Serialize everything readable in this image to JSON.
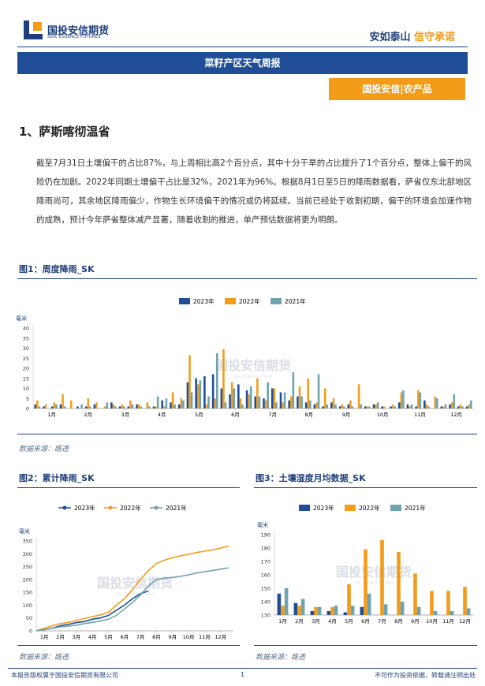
{
  "header": {
    "logo_cn": "国投安信期货",
    "logo_en": "SDIC ESSENCE FUTURES",
    "slogan_a": "安如泰山",
    "slogan_b": "信守承诺"
  },
  "report_title": "菜籽产区天气周报",
  "tag": "国投安信|农产品",
  "section": "1、萨斯喀彻温省",
  "paragraph": "截至7月31日土壤偏干的占比87%，与上周相比高2个百分点，其中十分干旱的占比提升了1个百分点，整体上偏干的风险仍在加剧。2022年同期土壤偏干占比是32%，2021年为96%。根据8月1日至5日的降雨数据看，萨省仅东北部地区降雨尚可，其余地区降雨偏少，作物生长环境偏干的情况或仍将延续。当前已经处于收割初期，偏干的环境会加速作物的成熟，预计今年萨省整体减产显著，随着收割的推进，单产预估数据将更为明朗。",
  "watermark": {
    "cn": "国投安信期货",
    "en": "SDIC ESSENCE FUTURES"
  },
  "footer": {
    "left": "本报告版权属于国投安信期货有限公司",
    "page": "1",
    "right": "不可作为投资依据，转载请注明出处"
  },
  "chart_data": [
    {
      "type": "bar",
      "title": "图1：周度降雨_SK",
      "source": "数据来源：路透",
      "y_label": "毫米",
      "grid": false,
      "x": [
        1,
        2,
        3,
        4,
        5,
        6,
        7,
        8,
        9,
        10,
        11,
        12,
        13,
        14,
        15,
        16,
        17,
        18,
        19,
        20,
        21,
        22,
        23,
        24,
        25,
        26,
        27,
        28,
        29,
        30,
        31,
        32,
        33,
        34,
        35,
        36,
        37,
        38,
        39,
        40,
        41,
        42,
        43,
        44,
        45,
        46,
        47,
        48,
        49,
        50,
        51,
        52
      ],
      "xlim": [
        0.5,
        52.5
      ],
      "xticks": [
        {
          "value": 2.7,
          "label": "1月"
        },
        {
          "value": 7,
          "label": "2月"
        },
        {
          "value": 11.4,
          "label": "3月"
        },
        {
          "value": 15.7,
          "label": "4月"
        },
        {
          "value": 20.1,
          "label": "5月"
        },
        {
          "value": 24.4,
          "label": "6月"
        },
        {
          "value": 28.8,
          "label": "7月"
        },
        {
          "value": 33.1,
          "label": "8月"
        },
        {
          "value": 37.5,
          "label": "9月"
        },
        {
          "value": 41.8,
          "label": "10月"
        },
        {
          "value": 46.2,
          "label": "11月"
        },
        {
          "value": 50.5,
          "label": "12月"
        }
      ],
      "ylim": [
        0,
        40
      ],
      "yticks": [
        0,
        5,
        10,
        15,
        20,
        25,
        30,
        35,
        40
      ],
      "series": [
        {
          "name": "2023年",
          "color": "#1f4e96",
          "values": [
            2,
            1,
            1,
            2,
            0,
            1,
            1,
            2,
            0,
            3,
            1,
            1,
            2,
            0,
            1,
            4,
            3,
            2,
            13,
            15,
            16,
            17,
            10,
            7,
            12,
            9,
            6,
            5,
            10,
            8,
            4,
            6,
            3,
            2,
            1,
            3,
            1,
            2,
            0,
            1,
            2,
            1,
            1,
            3,
            2,
            1,
            4,
            0,
            1,
            2,
            1,
            1
          ]
        },
        {
          "name": "2022年",
          "color": "#f39c1a",
          "values": [
            4,
            2,
            3,
            7,
            4,
            0,
            5,
            3,
            1,
            2,
            2,
            4,
            2,
            3,
            1,
            1,
            8,
            5,
            26.5,
            12,
            2,
            5,
            29.5,
            13,
            5,
            7,
            15,
            4,
            10,
            3,
            6,
            11,
            15,
            3,
            10,
            5,
            2,
            4,
            12,
            1,
            2,
            1,
            2,
            8,
            1,
            9,
            2,
            6,
            1,
            3,
            2,
            2
          ]
        },
        {
          "name": "2021年",
          "color": "#6fa3ae",
          "values": [
            1,
            0,
            2,
            1,
            0,
            2,
            1,
            0,
            3,
            1,
            1,
            2,
            1,
            1,
            6,
            5,
            2,
            4,
            8,
            14,
            6,
            27.5,
            3,
            10,
            2,
            11,
            6,
            13,
            3,
            8,
            18,
            6,
            4,
            17,
            2,
            2,
            1,
            1,
            2,
            1,
            3,
            0,
            1,
            9,
            2,
            8,
            1,
            5,
            2,
            7,
            1,
            4
          ]
        }
      ]
    },
    {
      "type": "line",
      "title": "图2：累计降雨_SK",
      "source": "数据来源：路透",
      "y_label": "毫米",
      "grid": false,
      "x": [
        0.5,
        1,
        1.5,
        2,
        2.5,
        3,
        3.5,
        4,
        4.5,
        5,
        5.5,
        6,
        6.5,
        7,
        7.5,
        8,
        8.5,
        9,
        9.5,
        10,
        10.5,
        11,
        11.5,
        12,
        12.5
      ],
      "xlim": [
        0.5,
        12.8
      ],
      "xticks": [
        {
          "value": 1,
          "label": "1月"
        },
        {
          "value": 2,
          "label": "2月"
        },
        {
          "value": 3,
          "label": "3月"
        },
        {
          "value": 4,
          "label": "4月"
        },
        {
          "value": 5,
          "label": "5月"
        },
        {
          "value": 6,
          "label": "6月"
        },
        {
          "value": 7,
          "label": "7月"
        },
        {
          "value": 8,
          "label": "8月"
        },
        {
          "value": 9,
          "label": "9月"
        },
        {
          "value": 10,
          "label": "10月"
        },
        {
          "value": 11,
          "label": "11月"
        },
        {
          "value": 12,
          "label": "12月"
        }
      ],
      "ylim": [
        0,
        350
      ],
      "yticks": [
        0,
        50,
        100,
        150,
        200,
        250,
        300,
        350
      ],
      "series": [
        {
          "name": "2023年",
          "color": "#1f4e96",
          "values": [
            0,
            5,
            10,
            20,
            25,
            32,
            36,
            45,
            50,
            60,
            80,
            100,
            125,
            145,
            155,
            null,
            null,
            null,
            null,
            null,
            null,
            null,
            null,
            null,
            null
          ]
        },
        {
          "name": "2022年",
          "color": "#f39c1a",
          "values": [
            0,
            10,
            20,
            28,
            33,
            40,
            48,
            55,
            62,
            72,
            100,
            125,
            160,
            200,
            235,
            262,
            275,
            285,
            292,
            298,
            305,
            310,
            315,
            322,
            330
          ]
        },
        {
          "name": "2021年",
          "color": "#6fa3ae",
          "values": [
            0,
            5,
            10,
            15,
            18,
            22,
            28,
            33,
            38,
            45,
            60,
            85,
            110,
            140,
            175,
            200,
            205,
            208,
            212,
            218,
            225,
            230,
            235,
            240,
            245
          ]
        }
      ]
    },
    {
      "type": "bar",
      "title": "图3：土壤湿度月均数据_SK",
      "source": "数据来源：路透",
      "y_label": "毫米",
      "grid": false,
      "categories": [
        "1月",
        "2月",
        "3月",
        "4月",
        "5月",
        "6月",
        "7月",
        "8月",
        "9月",
        "10月",
        "11月",
        "12月"
      ],
      "ylim": [
        130,
        190
      ],
      "yticks": [
        130,
        140,
        150,
        160,
        170,
        180,
        190
      ],
      "series": [
        {
          "name": "2023年",
          "color": "#1f4e96",
          "values": [
            146,
            139,
            133,
            133,
            132,
            136,
            null,
            null,
            null,
            null,
            null,
            null
          ]
        },
        {
          "name": "2022年",
          "color": "#f39c1a",
          "values": [
            137,
            137,
            136,
            136,
            153,
            179,
            186,
            177,
            161,
            148,
            148,
            151
          ]
        },
        {
          "name": "2021年",
          "color": "#6fa3ae",
          "values": [
            150,
            142,
            136,
            137,
            137,
            146,
            138,
            140,
            136,
            133,
            133,
            135
          ]
        }
      ]
    }
  ]
}
